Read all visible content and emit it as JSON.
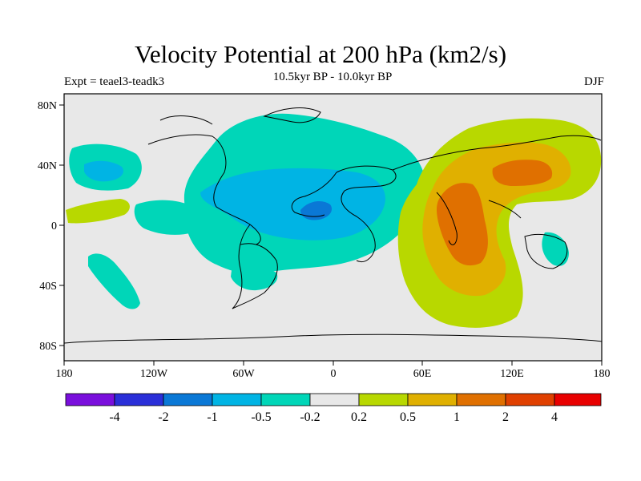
{
  "title": "Velocity Potential at 200 hPa (km2/s)",
  "subtitle": "10.5kyr BP - 10.0kyr BP",
  "left_label": "Expt = teael3-teadk3",
  "right_label": "DJF",
  "axes": {
    "x_ticks": [
      "180",
      "120W",
      "60W",
      "0",
      "60E",
      "120E",
      "180"
    ],
    "y_ticks": [
      "80N",
      "40N",
      "0",
      "40S",
      "80S"
    ]
  },
  "colorbar": {
    "labels": [
      "-4",
      "-2",
      "-1",
      "-0.5",
      "-0.2",
      "0.2",
      "0.5",
      "1",
      "2",
      "4"
    ],
    "colors": [
      "#7a0fdc",
      "#2a2fd8",
      "#0a78d6",
      "#00b4e4",
      "#00d6b8",
      "#e8e8e8",
      "#b8d800",
      "#e0b000",
      "#e07000",
      "#e04000",
      "#e80000"
    ]
  },
  "palette": {
    "land_neutral": "#e8e8e8",
    "neg_weak": "#00d6b8",
    "neg_mid": "#00b4e4",
    "neg_strong": "#0a78d6",
    "pos_weak": "#b8d800",
    "pos_mid": "#e0b000",
    "pos_strong": "#e07000"
  }
}
